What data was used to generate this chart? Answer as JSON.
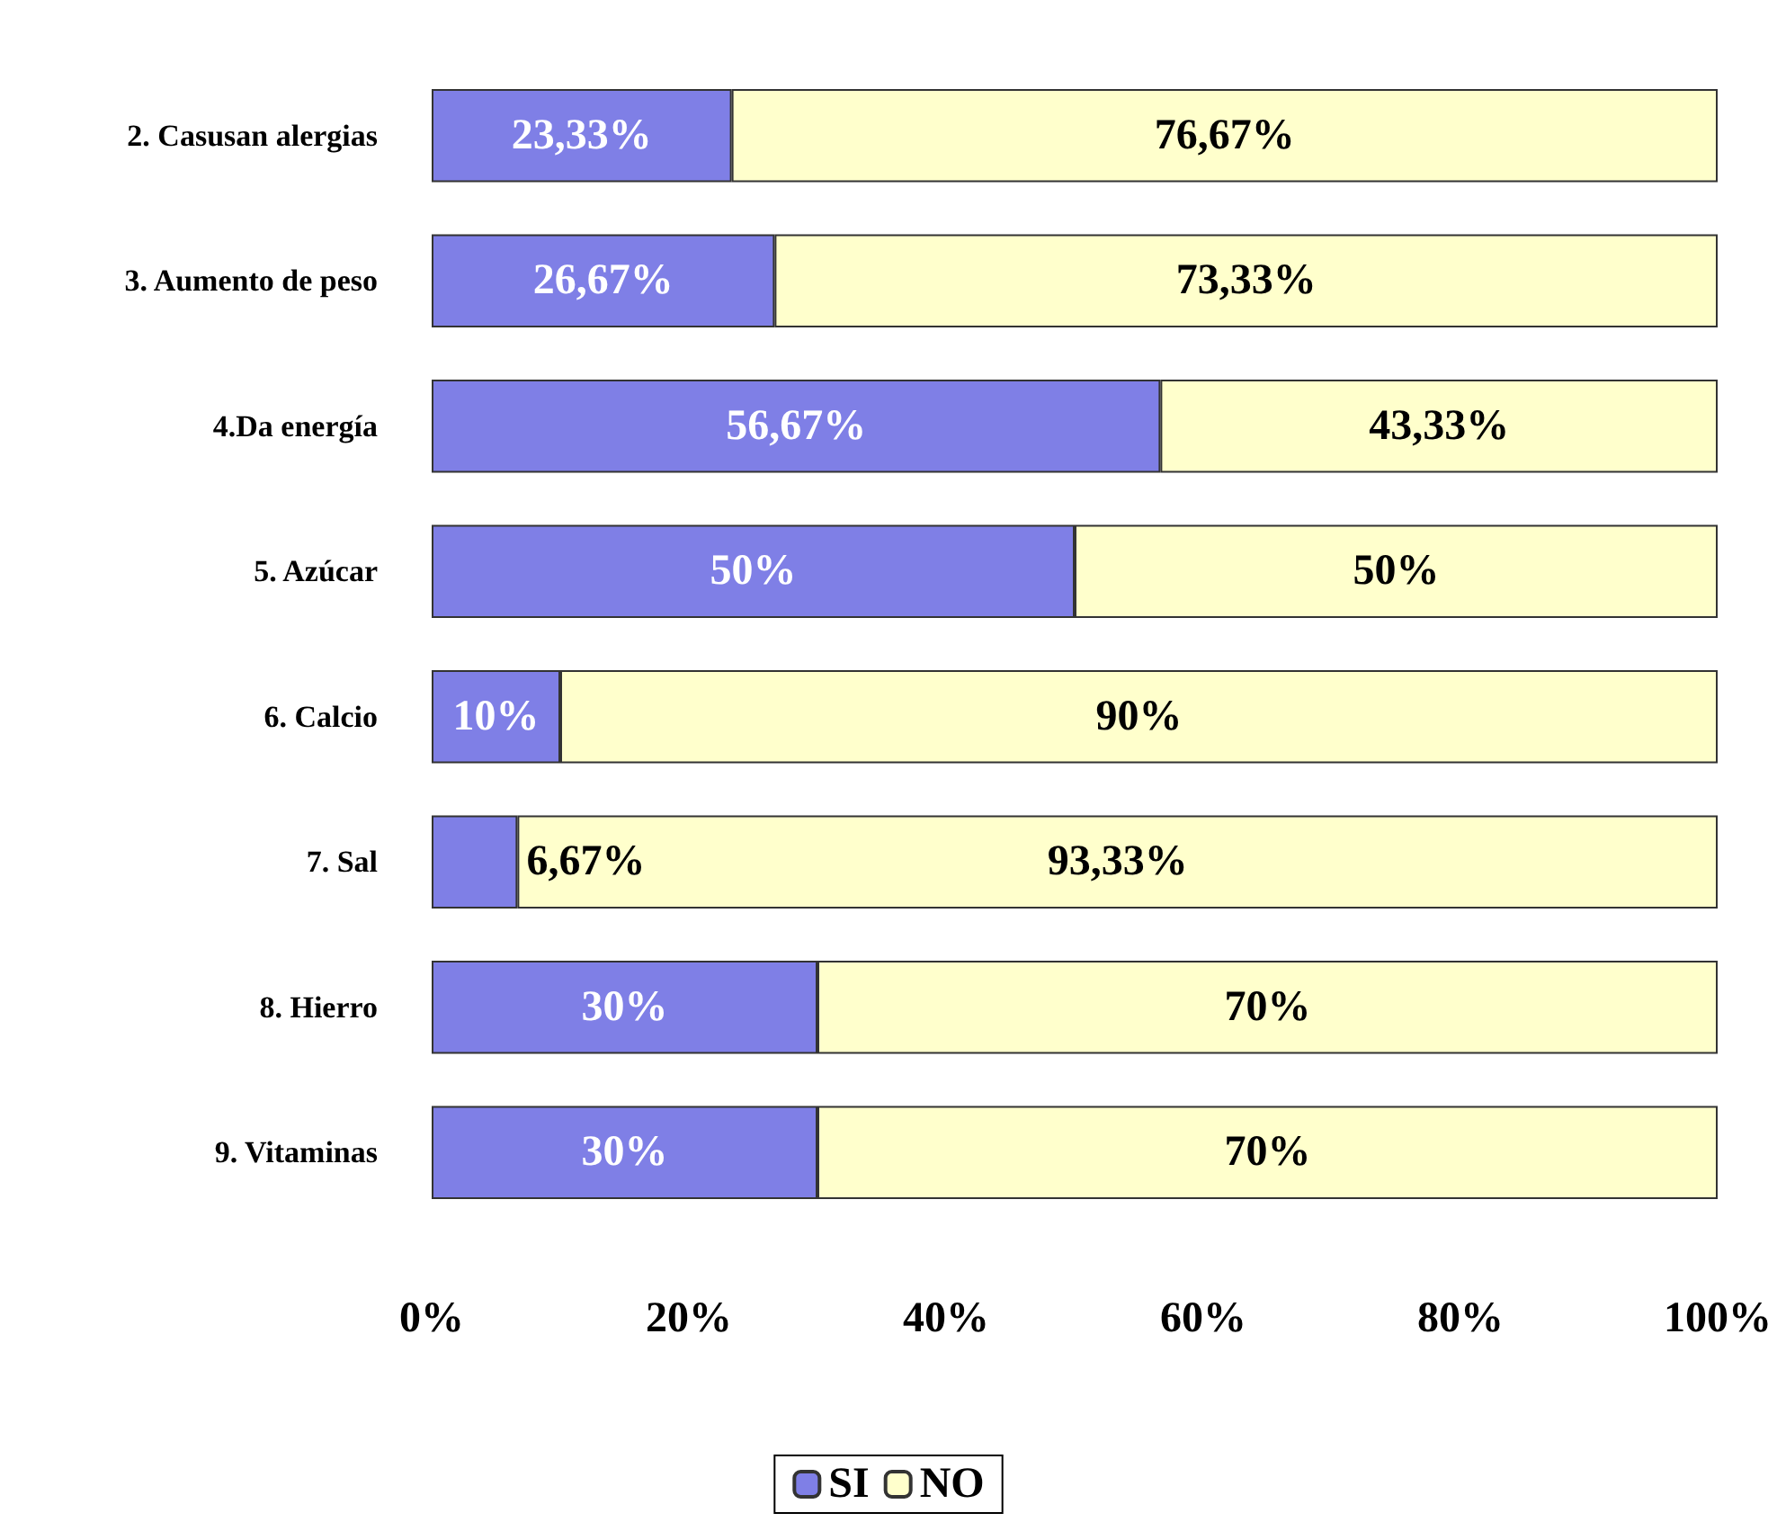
{
  "chart_data": {
    "type": "bar",
    "orientation": "horizontal",
    "stacked": true,
    "categories": [
      "2. Casusan alergias",
      "3. Aumento de peso",
      "4.Da energía",
      "5. Azúcar",
      "6. Calcio",
      "7. Sal",
      "8. Hierro",
      "9. Vitaminas"
    ],
    "series": [
      {
        "name": "SI",
        "color": "#7f7fe6",
        "values": [
          23.33,
          26.67,
          56.67,
          50,
          10,
          6.67,
          30,
          30
        ],
        "value_labels": [
          "23,33%",
          "26,67%",
          "56,67%",
          "50%",
          "10%",
          "6,67%",
          "30%",
          "30%"
        ]
      },
      {
        "name": "NO",
        "color": "#ffffcc",
        "values": [
          76.67,
          73.33,
          43.33,
          50,
          90,
          93.33,
          70,
          70
        ],
        "value_labels": [
          "76,67%",
          "73,33%",
          "43,33%",
          "50%",
          "90%",
          "93,33%",
          "70%",
          "70%"
        ]
      }
    ],
    "xlim": [
      0,
      100
    ],
    "xticks": [
      {
        "value": 0,
        "label": "0%"
      },
      {
        "value": 20,
        "label": "20%"
      },
      {
        "value": 40,
        "label": "40%"
      },
      {
        "value": 60,
        "label": "60%"
      },
      {
        "value": 80,
        "label": "80%"
      },
      {
        "value": 100,
        "label": "100%"
      }
    ],
    "grid": false,
    "legend": "bottom"
  }
}
